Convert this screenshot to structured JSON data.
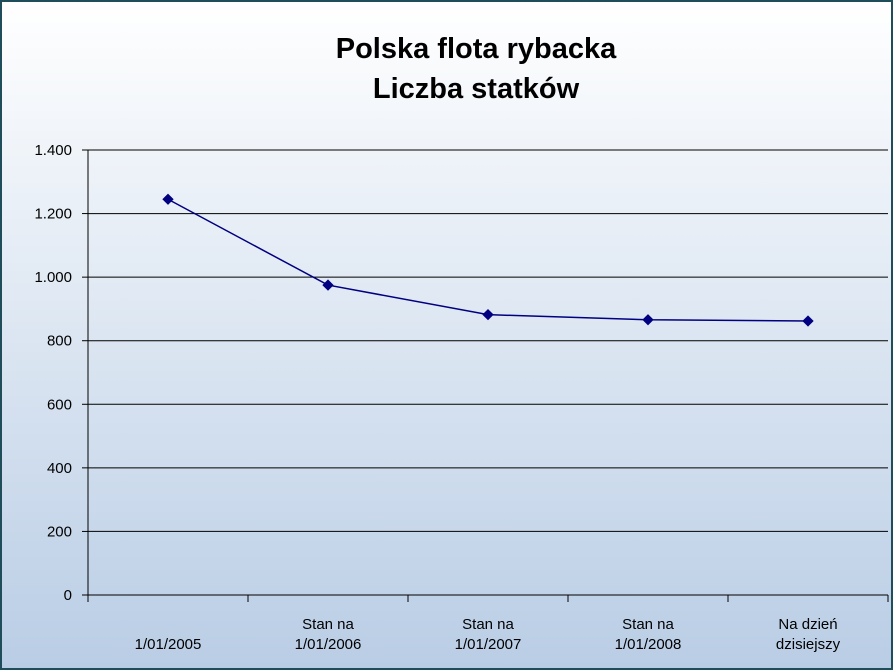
{
  "chart_data": {
    "type": "line",
    "title": "Polska flota rybacka",
    "subtitle": "Liczba statków",
    "categories": [
      "1/01/2005",
      "Stan na\n1/01/2006",
      "Stan na\n1/01/2007",
      "Stan na\n1/01/2008",
      "Na dzień\ndzisiejszy"
    ],
    "series": [
      {
        "name": "Liczba statków",
        "color": "#000080",
        "values": [
          1245,
          975,
          882,
          866,
          862
        ]
      }
    ],
    "ylim": [
      0,
      1400
    ],
    "yticks": [
      0,
      200,
      400,
      600,
      800,
      {
        "value": 1000,
        "label": "1.000"
      },
      {
        "value": 1200,
        "label": "1.200"
      },
      {
        "value": 1400,
        "label": "1.400"
      }
    ],
    "grid": true
  }
}
